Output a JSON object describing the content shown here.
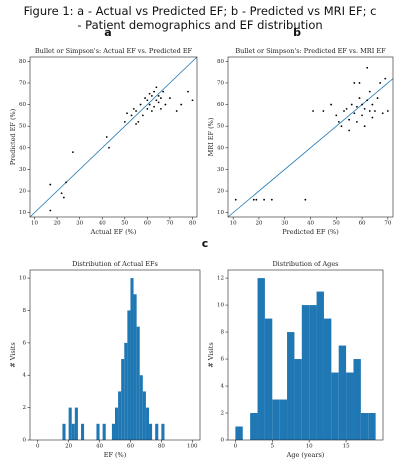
{
  "header": {
    "title": "Figure 1: a - Actual vs Predicted EF; b - Predicted vs MRI EF; c - Patient demographics and EF distribution",
    "panel_labels": [
      "a",
      "b",
      "c"
    ]
  },
  "chart_data": [
    {
      "type": "scatter",
      "title": "Bullet or Simpson's: Actual EF vs. Predicted EF",
      "xlabel": "Actual EF (%)",
      "ylabel": "Predicted EF (%)",
      "color": "#000000",
      "line_color": "#1f77b4",
      "x": [
        17,
        17,
        22,
        23,
        24,
        27,
        42,
        43,
        50,
        51,
        53,
        54,
        55,
        55,
        56,
        57,
        58,
        59,
        60,
        60,
        61,
        61,
        62,
        62,
        63,
        63,
        64,
        64,
        65,
        65,
        66,
        66,
        67,
        68,
        70,
        73,
        75,
        78,
        80
      ],
      "y": [
        11,
        23,
        19,
        17,
        24,
        38,
        45,
        40,
        52,
        56,
        55,
        58,
        57,
        51,
        52,
        60,
        55,
        63,
        62,
        58,
        65,
        60,
        57,
        64,
        66,
        59,
        62,
        68,
        61,
        64,
        63,
        58,
        66,
        60,
        63,
        57,
        60,
        66,
        62
      ],
      "xlim": [
        8,
        82
      ],
      "ylim": [
        8,
        82
      ],
      "xticks": [
        10,
        20,
        30,
        40,
        50,
        60,
        70,
        80
      ],
      "yticks": [
        10,
        20,
        30,
        40,
        50,
        60,
        70,
        80
      ]
    },
    {
      "type": "scatter",
      "title": "Bullet or Simpson's: Predicted EF vs. MRI EF",
      "xlabel": "Predicted EF (%)",
      "ylabel": "MRI EF (%)",
      "color": "#000000",
      "line_color": "#1f77b4",
      "x": [
        11,
        18,
        19,
        22,
        25,
        38,
        41,
        45,
        48,
        50,
        51,
        52,
        53,
        54,
        55,
        55,
        56,
        57,
        57,
        58,
        58,
        59,
        59,
        60,
        60,
        61,
        61,
        62,
        62,
        63,
        63,
        64,
        64,
        65,
        66,
        67,
        68,
        69,
        70
      ],
      "y": [
        16,
        16,
        16,
        16,
        16,
        16,
        57,
        57,
        60,
        55,
        52,
        50,
        57,
        58,
        53,
        48,
        60,
        70,
        56,
        59,
        52,
        63,
        70,
        60,
        55,
        58,
        50,
        62,
        77,
        57,
        66,
        54,
        60,
        57,
        63,
        70,
        56,
        72,
        57
      ],
      "xlim": [
        8,
        72
      ],
      "ylim": [
        8,
        82
      ],
      "xticks": [
        10,
        20,
        30,
        40,
        50,
        60,
        70
      ],
      "yticks": [
        10,
        20,
        30,
        40,
        50,
        60,
        70,
        80
      ]
    },
    {
      "type": "histogram",
      "title": "Distribution of Actual EFs",
      "xlabel": "EF (%)",
      "ylabel": "# Visits",
      "color": "#1f77b4",
      "bins": [
        16,
        18,
        20,
        22,
        24,
        26,
        28,
        30,
        32,
        34,
        36,
        38,
        40,
        42,
        44,
        46,
        48,
        50,
        52,
        54,
        56,
        58,
        60,
        62,
        64,
        66,
        68,
        70,
        72,
        74,
        76,
        78,
        80,
        82
      ],
      "counts": [
        1,
        0,
        2,
        1,
        2,
        0,
        1,
        0,
        0,
        0,
        0,
        1,
        0,
        1,
        0,
        0,
        1,
        2,
        3,
        5,
        6,
        8,
        10,
        9,
        7,
        4,
        3,
        2,
        1,
        0,
        1,
        0,
        1
      ],
      "xlim": [
        -5,
        105
      ],
      "ylim": [
        0,
        10.5
      ],
      "xticks": [
        0,
        20,
        40,
        60,
        80,
        100
      ],
      "yticks": [
        0,
        2,
        4,
        6,
        8,
        10
      ]
    },
    {
      "type": "histogram",
      "title": "Distribution of Ages",
      "xlabel": "Age (years)",
      "ylabel": "# Visits",
      "color": "#1f77b4",
      "bins": [
        0,
        1,
        2,
        3,
        4,
        5,
        6,
        7,
        8,
        9,
        10,
        11,
        12,
        13,
        14,
        15,
        16,
        17,
        18,
        19
      ],
      "counts": [
        1,
        0,
        2,
        12,
        9,
        3,
        3,
        8,
        6,
        10,
        10,
        11,
        9,
        5,
        7,
        5,
        6,
        2,
        2
      ],
      "xlim": [
        -1,
        20
      ],
      "ylim": [
        0,
        12.6
      ],
      "xticks": [
        0,
        5,
        10,
        15
      ],
      "yticks": [
        0,
        2,
        4,
        6,
        8,
        10,
        12
      ]
    }
  ]
}
